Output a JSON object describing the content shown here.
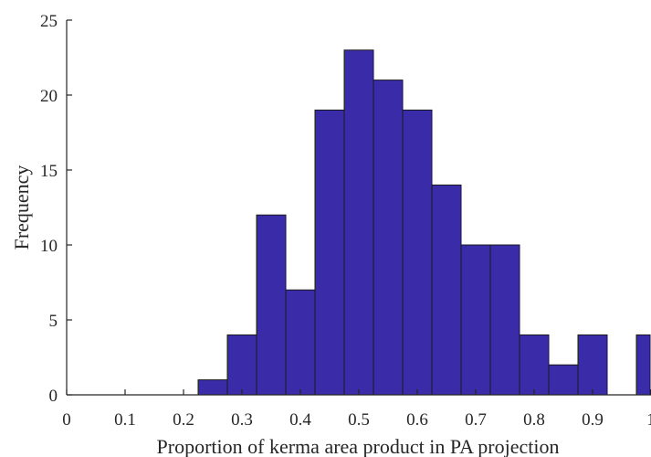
{
  "chart_data": {
    "type": "bar",
    "xlabel": "Proportion of kerma area product in PA projection",
    "ylabel": "Frequency",
    "xlim": [
      0,
      1
    ],
    "ylim": [
      0,
      25
    ],
    "x_ticks": [
      "0",
      "0.1",
      "0.2",
      "0.3",
      "0.4",
      "0.5",
      "0.6",
      "0.7",
      "0.8",
      "0.9",
      "1"
    ],
    "y_ticks": [
      "0",
      "5",
      "10",
      "15",
      "20",
      "25"
    ],
    "bar_color": "#3a2ba8",
    "bin_width": 0.05,
    "bins": [
      {
        "start": 0.225,
        "end": 0.275,
        "value": 1
      },
      {
        "start": 0.275,
        "end": 0.325,
        "value": 4
      },
      {
        "start": 0.325,
        "end": 0.375,
        "value": 12
      },
      {
        "start": 0.375,
        "end": 0.425,
        "value": 7
      },
      {
        "start": 0.425,
        "end": 0.475,
        "value": 19
      },
      {
        "start": 0.475,
        "end": 0.525,
        "value": 23
      },
      {
        "start": 0.525,
        "end": 0.575,
        "value": 21
      },
      {
        "start": 0.575,
        "end": 0.625,
        "value": 19
      },
      {
        "start": 0.625,
        "end": 0.675,
        "value": 14
      },
      {
        "start": 0.675,
        "end": 0.725,
        "value": 10
      },
      {
        "start": 0.725,
        "end": 0.775,
        "value": 10
      },
      {
        "start": 0.775,
        "end": 0.825,
        "value": 4
      },
      {
        "start": 0.825,
        "end": 0.875,
        "value": 2
      },
      {
        "start": 0.875,
        "end": 0.925,
        "value": 4
      },
      {
        "start": 0.925,
        "end": 0.975,
        "value": 0
      },
      {
        "start": 0.975,
        "end": 1.025,
        "value": 4
      }
    ]
  }
}
